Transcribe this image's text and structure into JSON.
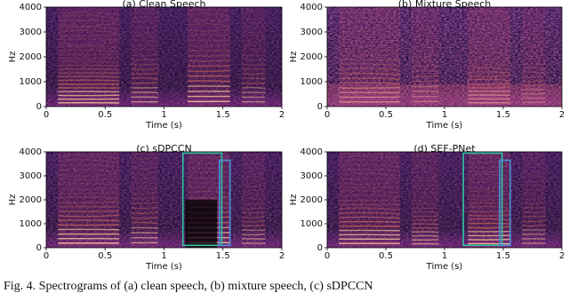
{
  "chart_data": [
    {
      "type": "spectrogram",
      "title": "(a) Clean Speech",
      "x_label": "Time (s)",
      "y_label": "Hz",
      "xlim": [
        0,
        2
      ],
      "xticks": [
        0,
        0.5,
        1,
        1.5,
        2
      ],
      "ylim": [
        0,
        4000
      ],
      "yticks": [
        0,
        1000,
        2000,
        3000,
        4000
      ]
    },
    {
      "type": "spectrogram",
      "title": "(b) Mixture Speech",
      "x_label": "Time (s)",
      "y_label": "Hz",
      "xlim": [
        0,
        2
      ],
      "xticks": [
        0,
        0.5,
        1,
        1.5,
        2
      ],
      "ylim": [
        0,
        4000
      ],
      "yticks": [
        0,
        1000,
        2000,
        3000,
        4000
      ]
    },
    {
      "type": "spectrogram",
      "title": "(c) sDPCCN",
      "x_label": "Time (s)",
      "y_label": "Hz",
      "xlim": [
        0,
        2
      ],
      "xticks": [
        0,
        0.5,
        1,
        1.5,
        2
      ],
      "ylim": [
        0,
        4000
      ],
      "yticks": [
        0,
        1000,
        2000,
        3000,
        4000
      ],
      "highlight_boxes": [
        {
          "x": [
            1.16,
            1.49
          ],
          "y": [
            100,
            3950
          ],
          "color": "#2ec4a0"
        },
        {
          "x": [
            1.47,
            1.56
          ],
          "y": [
            100,
            3650
          ],
          "color": "#4a90d9"
        }
      ]
    },
    {
      "type": "spectrogram",
      "title": "(d) SEF-PNet",
      "x_label": "Time (s)",
      "y_label": "Hz",
      "xlim": [
        0,
        2
      ],
      "xticks": [
        0,
        0.5,
        1,
        1.5,
        2
      ],
      "ylim": [
        0,
        4000
      ],
      "yticks": [
        0,
        1000,
        2000,
        3000,
        4000
      ],
      "highlight_boxes": [
        {
          "x": [
            1.16,
            1.49
          ],
          "y": [
            100,
            3950
          ],
          "color": "#2ec4a0"
        },
        {
          "x": [
            1.47,
            1.56
          ],
          "y": [
            100,
            3650
          ],
          "color": "#4a90d9"
        }
      ]
    }
  ],
  "caption": "Fig. 4.   Spectrograms of (a) clean speech, (b) mixture speech, (c) sDPCCN"
}
